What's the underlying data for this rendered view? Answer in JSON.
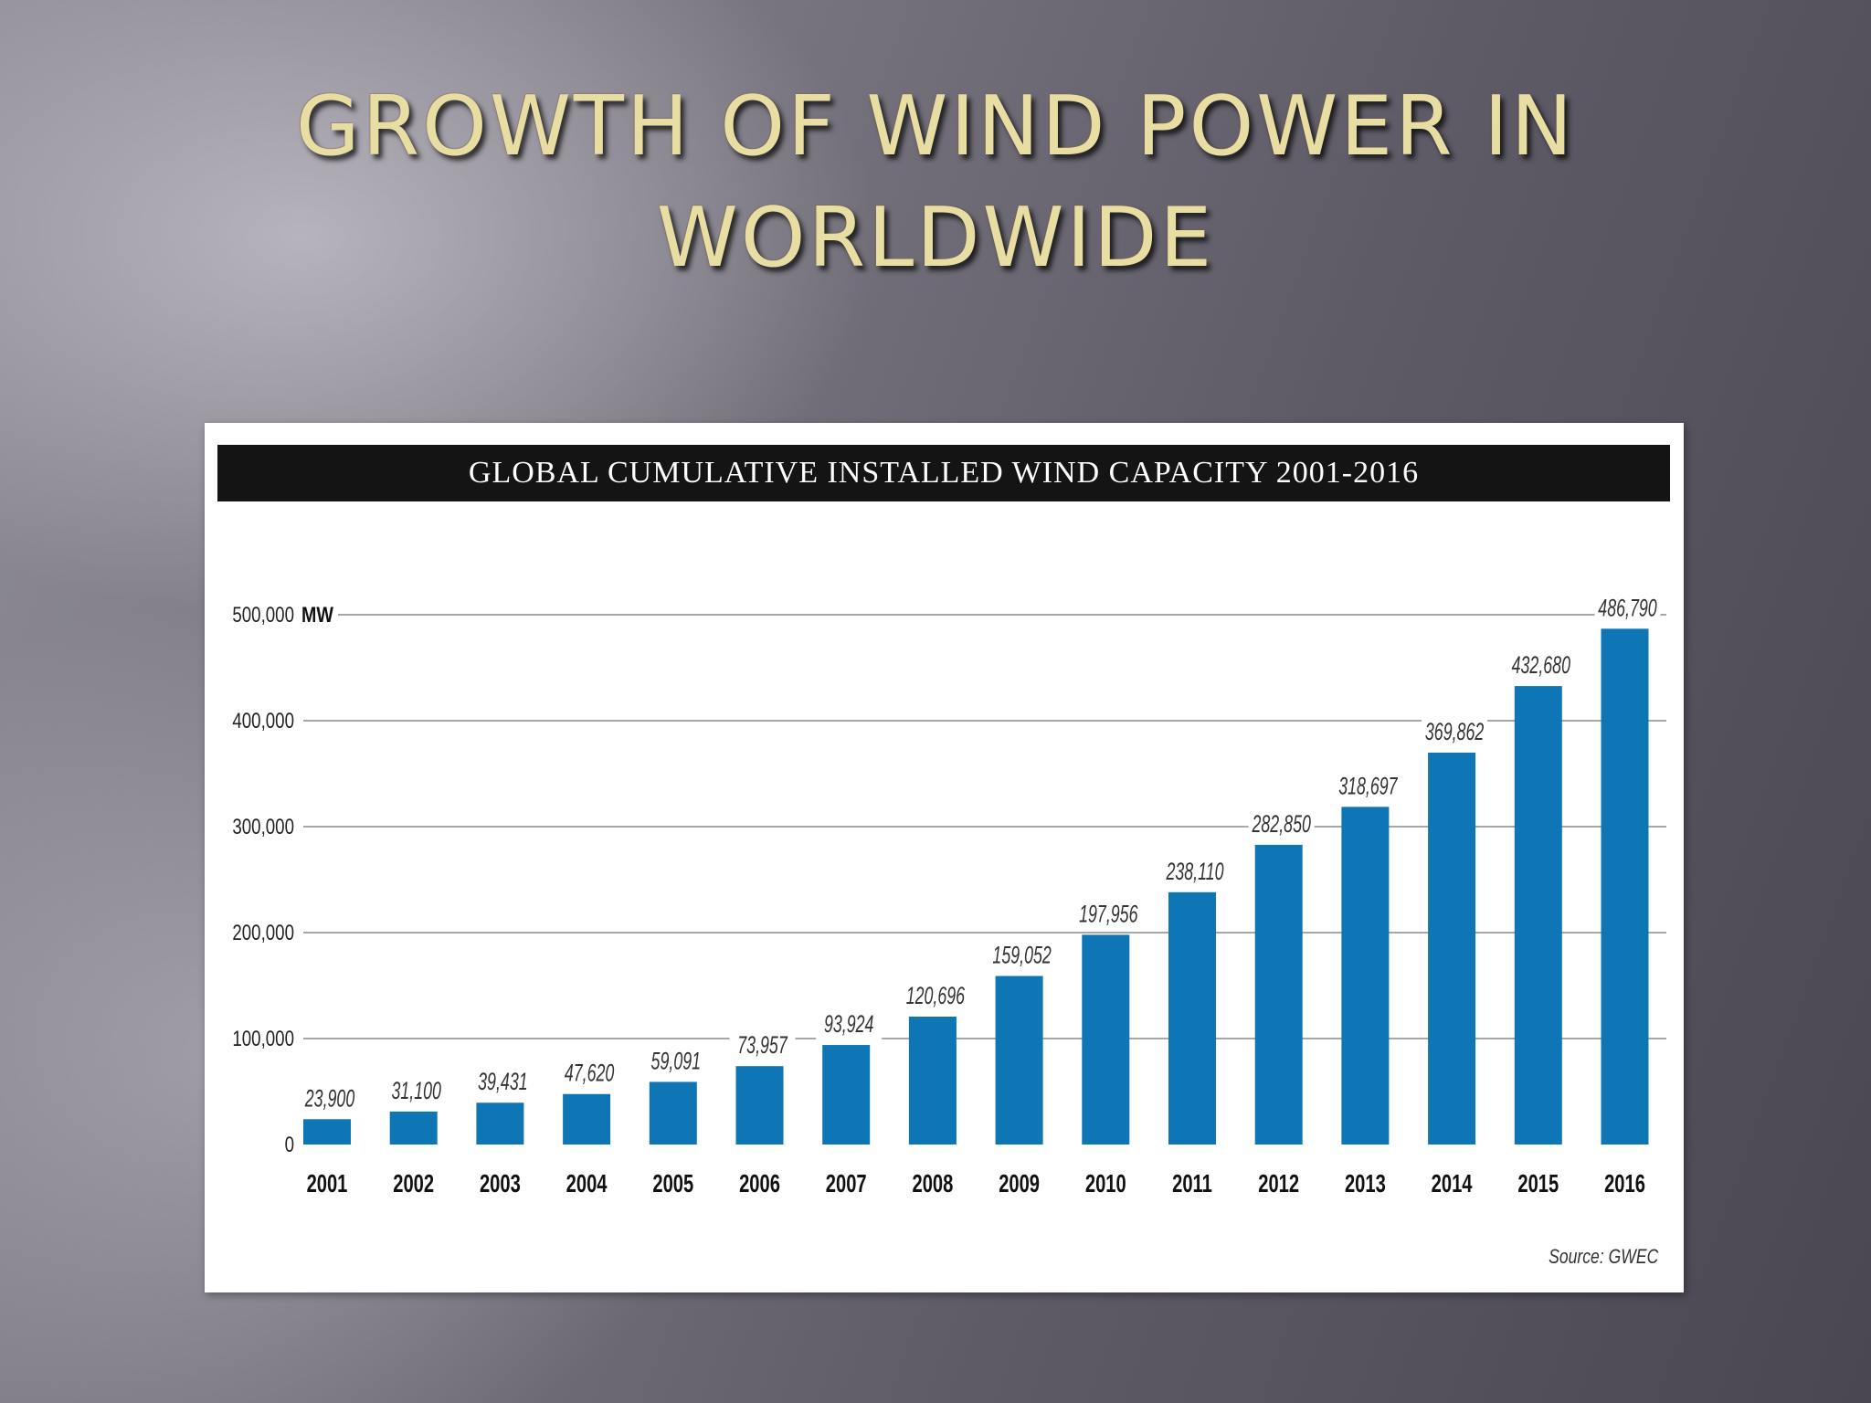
{
  "slide": {
    "title_line1": "GROWTH OF WIND POWER IN",
    "title_line2": "WORLDWIDE"
  },
  "chart_data": {
    "type": "bar",
    "title": "GLOBAL CUMULATIVE INSTALLED WIND CAPACITY 2001-2016",
    "unit": "MW",
    "categories": [
      "2001",
      "2002",
      "2003",
      "2004",
      "2005",
      "2006",
      "2007",
      "2008",
      "2009",
      "2010",
      "2011",
      "2012",
      "2013",
      "2014",
      "2015",
      "2016"
    ],
    "values": [
      23900,
      31100,
      39431,
      47620,
      59091,
      73957,
      93924,
      120696,
      159052,
      197956,
      238110,
      282850,
      318697,
      369862,
      432680,
      486790
    ],
    "value_labels": [
      "23,900",
      "31,100",
      "39,431",
      "47,620",
      "59,091",
      "73,957",
      "93,924",
      "120,696",
      "159,052",
      "197,956",
      "238,110",
      "282,850",
      "318,697",
      "369,862",
      "432,680",
      "486,790"
    ],
    "y_ticks": [
      0,
      100000,
      200000,
      300000,
      400000,
      500000
    ],
    "y_tick_labels": [
      "0",
      "100,000",
      "200,000",
      "300,000",
      "400,000",
      "500,000"
    ],
    "ylim": [
      0,
      500000
    ],
    "grid": true,
    "bar_color": "#0f76b5",
    "source": "Source: GWEC"
  }
}
